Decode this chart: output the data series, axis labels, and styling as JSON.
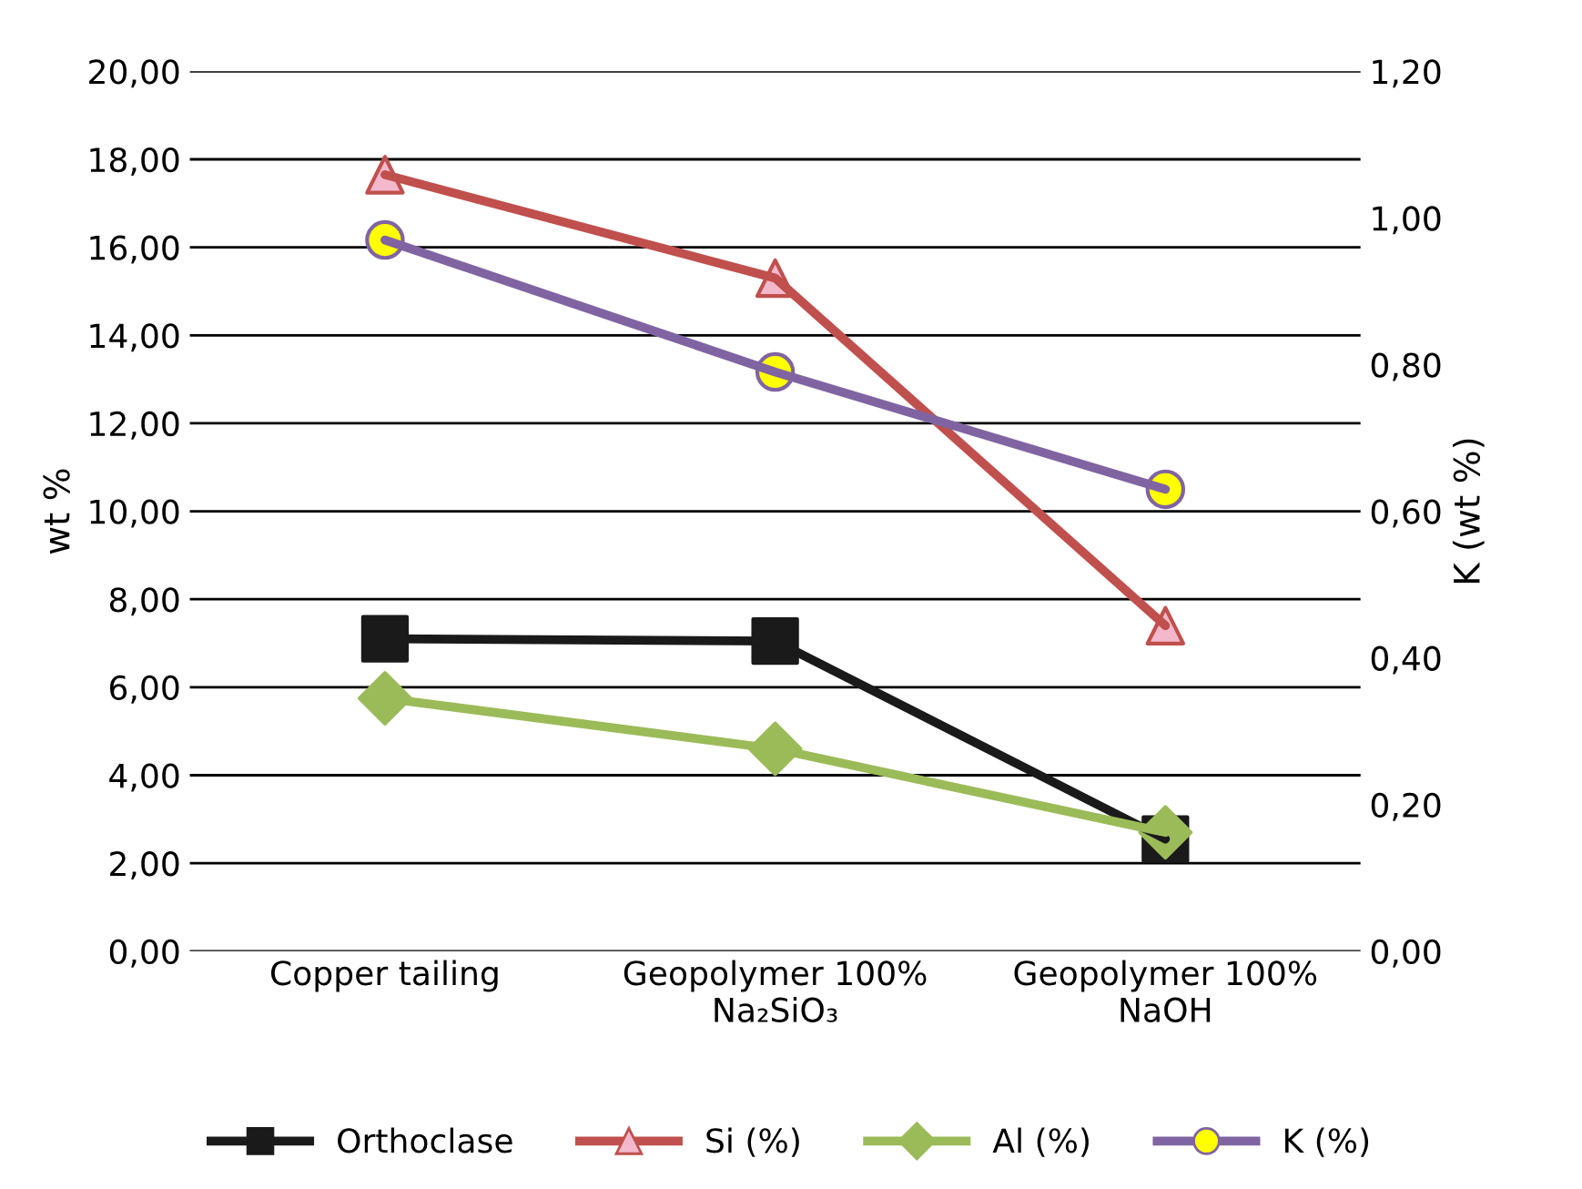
{
  "chart_data": {
    "type": "line",
    "ylabel": "wt %",
    "y2label": "K (wt %)",
    "categories": [
      "Copper tailing",
      "Geopolymer 100%\nNa₂SiO₃",
      "Geopolymer 100%\nNaOH"
    ],
    "series": [
      {
        "name": "Orthoclase",
        "color": "#1a1a1a",
        "marker": "square",
        "colors": [
          "#1a1a1a",
          "#1a1a1a",
          "#1a1a1a"
        ],
        "values": [
          7.1,
          7.05,
          2.55
        ]
      },
      {
        "name": "Si (%)",
        "color": "#c0504d",
        "marker": "triangle",
        "colors": [
          "#f4b8cc",
          "#f4b8cc",
          "#f4b8cc"
        ],
        "values": [
          17.65,
          15.3,
          7.4
        ]
      },
      {
        "name": "Al (%)",
        "color": "#9bbb59",
        "marker": "diamond",
        "colors": [
          "#9bbb59",
          "#9bbb59",
          "#9bbb59"
        ],
        "values": [
          5.75,
          4.6,
          2.7
        ]
      },
      {
        "name": "K (%)",
        "color": "#8064a2",
        "marker": "circle",
        "colors": [
          "#ffff00",
          "#ffff00",
          "#ffff00"
        ],
        "axis": "y2",
        "values": [
          0.97,
          0.79,
          0.63
        ]
      }
    ],
    "ylim": [
      0,
      20
    ],
    "yticks": [
      {
        "value": 0,
        "label": "0,00"
      },
      {
        "value": 2,
        "label": "2,00"
      },
      {
        "value": 4,
        "label": "4,00"
      },
      {
        "value": 6,
        "label": "6,00"
      },
      {
        "value": 8,
        "label": "8,00"
      },
      {
        "value": 10,
        "label": "10,00"
      },
      {
        "value": 12,
        "label": "12,00"
      },
      {
        "value": 14,
        "label": "14,00"
      },
      {
        "value": 16,
        "label": "16,00"
      },
      {
        "value": 18,
        "label": "18,00"
      },
      {
        "value": 20,
        "label": "20,00"
      }
    ],
    "y2lim": [
      0,
      1.2
    ],
    "y2ticks": [
      {
        "value": 0,
        "label": "0,00"
      },
      {
        "value": 0.2,
        "label": "0,20"
      },
      {
        "value": 0.4,
        "label": "0,40"
      },
      {
        "value": 0.6,
        "label": "0,60"
      },
      {
        "value": 0.8,
        "label": "0,80"
      },
      {
        "value": 1.0,
        "label": "1,00"
      },
      {
        "value": 1.2,
        "label": "1,20"
      }
    ],
    "grid": "y",
    "legend": "bottom",
    "line_style": "solid"
  }
}
